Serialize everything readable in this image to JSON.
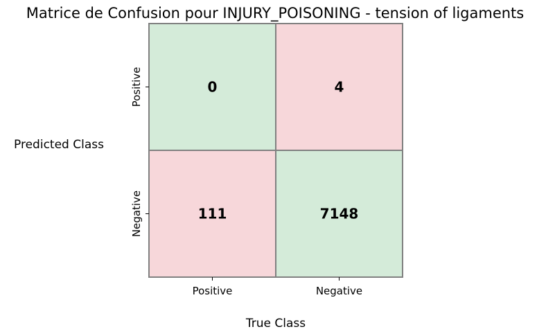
{
  "chart_data": {
    "type": "heatmap",
    "title": "Matrice de Confusion pour INJURY_POISONING - tension of ligaments",
    "xlabel": "True Class",
    "ylabel": "Predicted Class",
    "x_categories": [
      "Positive",
      "Negative"
    ],
    "y_categories": [
      "Positive",
      "Negative"
    ],
    "cells": [
      {
        "row": 0,
        "col": 0,
        "value": "0",
        "kind": "correct"
      },
      {
        "row": 0,
        "col": 1,
        "value": "4",
        "kind": "error"
      },
      {
        "row": 1,
        "col": 0,
        "value": "111",
        "kind": "error"
      },
      {
        "row": 1,
        "col": 1,
        "value": "7148",
        "kind": "correct"
      }
    ],
    "colors": {
      "correct": "#d4ebd9",
      "error": "#f7d7da",
      "border": "#808080"
    },
    "grid": false,
    "legend": "none"
  }
}
